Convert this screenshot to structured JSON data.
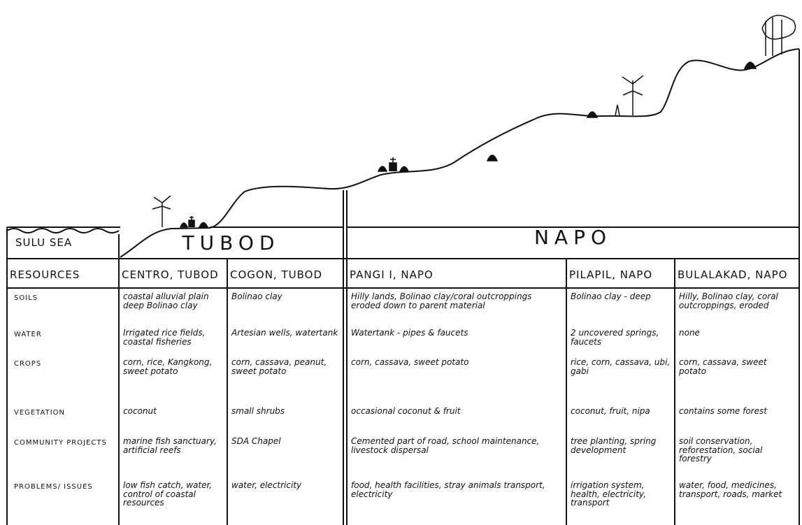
{
  "regions": [
    "SULU SEA",
    "TUBOD",
    "NAPO"
  ],
  "table": {
    "header": [
      "RESOURCES",
      "CENTRO, TUBOD",
      "COGON, TUBOD",
      "PANGI I, NAPO",
      "PILAPIL, NAPO",
      "BULALAKAD, NAPO"
    ],
    "rows": [
      [
        "SOILS",
        "coastal alluvial plain deep Bolinao clay",
        "Bolinao clay",
        "Hilly lands, Bolinao clay/coral outcroppings eroded down to parent material",
        "Bolinao clay - deep",
        "Hilly, Bolinao clay, coral outcroppings, eroded"
      ],
      [
        "WATER",
        "Irrigated rice fields, coastal fisheries",
        "Artesian wells, watertank",
        "Watertank - pipes & faucets",
        "2 uncovered springs, faucets",
        "none"
      ],
      [
        "CROPS",
        "corn, rice, Kangkong, sweet potato",
        "corn, cassava, peanut, sweet potato",
        "corn, cassava, sweet potato",
        "rice, corn, cassava, ubi, gabi",
        "corn, cassava, sweet potato"
      ],
      [
        "VEGETATION",
        "coconut",
        "small shrubs",
        "occasional coconut & fruit",
        "coconut, fruit, nipa",
        "contains some forest"
      ],
      [
        "COMMUNITY PROJECTS",
        "marine fish sanctuary, artificial reefs",
        "SDA Chapel",
        "Cemented part of road, school maintenance, livestock dispersal",
        "tree planting, spring development",
        "soil conservation, reforestation, social forestry"
      ],
      [
        "PROBLEMS/ ISSUES",
        "low fish catch, water, control of coastal resources",
        "water, electricity",
        "food, health facilities, stray animals transport, electricity",
        "irrigation system, health, electricity, transport",
        "water, food, medicines, transport, roads, market"
      ]
    ]
  }
}
